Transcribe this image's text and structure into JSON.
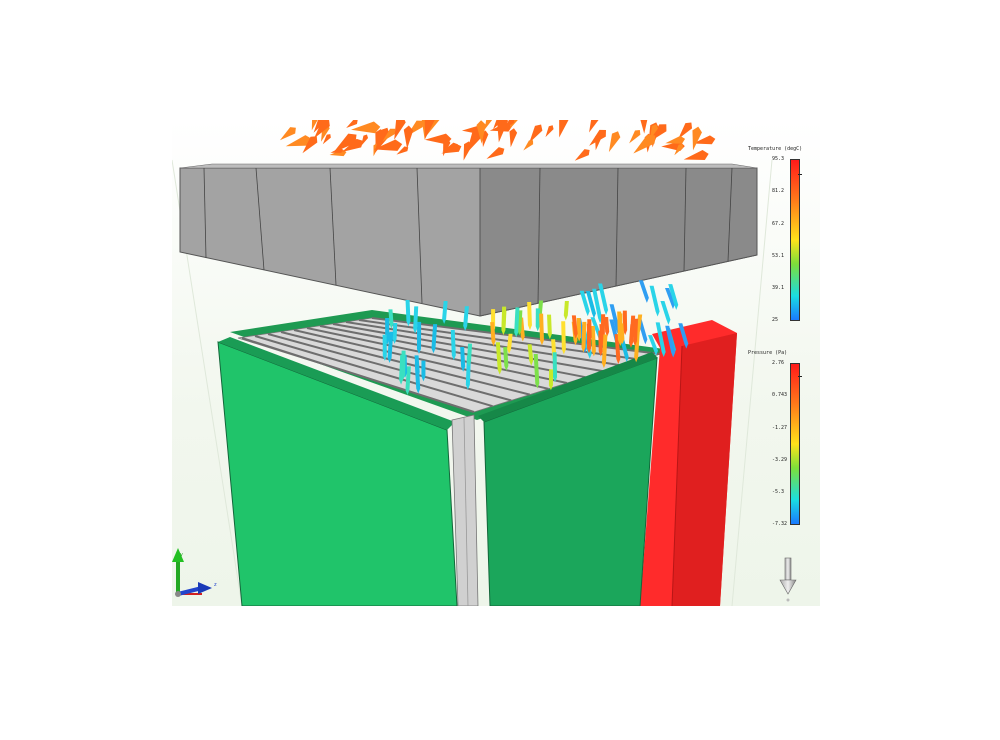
{
  "app": {
    "view": "3D model viewport"
  },
  "legends": {
    "temperature": {
      "title": "Temperature (degC)",
      "ticks": [
        "95.3",
        "81.2",
        "67.2",
        "53.1",
        "39.1",
        "25"
      ]
    },
    "pressure": {
      "title": "Pressure (Pa)",
      "ticks": [
        "2.76",
        "0.743",
        "-1.27",
        "-3.29",
        "-5.3",
        "-7.32"
      ]
    }
  },
  "axes": {
    "x": "x",
    "y": "y",
    "z": "z"
  },
  "colors": {
    "heat_sink": "#9a9a9a",
    "board_left": "#22c46a",
    "board_right": "#1aa85a",
    "board_hot": "#ee2222",
    "hot_arrows": "#ff6a1a",
    "cool_arrows": "#22b8e8",
    "background": "#eef5ea"
  },
  "icons": {
    "axis_triad": "axis-triad-icon",
    "gravity": "gravity-arrow-icon"
  }
}
